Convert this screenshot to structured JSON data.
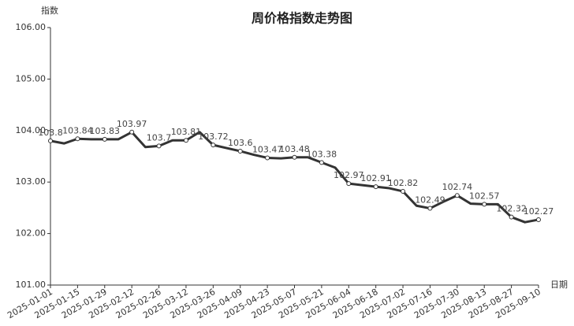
{
  "chart_data": {
    "type": "line",
    "title": "周价格指数走势图",
    "y_label": "指数",
    "x_label": "日期",
    "categories": [
      "2025-01-01",
      null,
      "2025-01-15",
      null,
      "2025-01-29",
      null,
      "2025-02-12",
      null,
      "2025-02-26",
      null,
      "2025-03-12",
      null,
      "2025-03-26",
      null,
      "2025-04-09",
      null,
      "2025-04-23",
      null,
      "2025-05-07",
      null,
      "2025-05-21",
      null,
      "2025-06-04",
      null,
      "2025-06-18",
      null,
      "2025-07-02",
      null,
      "2025-07-16",
      null,
      "2025-07-30",
      null,
      "2025-08-13",
      null,
      "2025-08-27",
      null,
      "2025-09-10"
    ],
    "values": [
      103.8,
      103.75,
      103.84,
      103.83,
      103.83,
      103.83,
      103.97,
      103.68,
      103.7,
      103.81,
      103.81,
      103.97,
      103.72,
      103.66,
      103.6,
      103.53,
      103.47,
      103.46,
      103.48,
      103.48,
      103.38,
      103.28,
      102.97,
      102.94,
      102.91,
      102.88,
      102.82,
      102.54,
      102.49,
      102.62,
      102.74,
      102.58,
      102.57,
      102.57,
      102.32,
      102.22,
      102.27
    ],
    "color": "#333333",
    "ylim": [
      101,
      106
    ],
    "yticks": [
      {
        "value": 101,
        "label": "101.00"
      },
      {
        "value": 102,
        "label": "102.00"
      },
      {
        "value": 103,
        "label": "103.00"
      },
      {
        "value": 104,
        "label": "104.00"
      },
      {
        "value": 105,
        "label": "105.00"
      },
      {
        "value": 106,
        "label": "106.00"
      }
    ],
    "grid": false
  }
}
